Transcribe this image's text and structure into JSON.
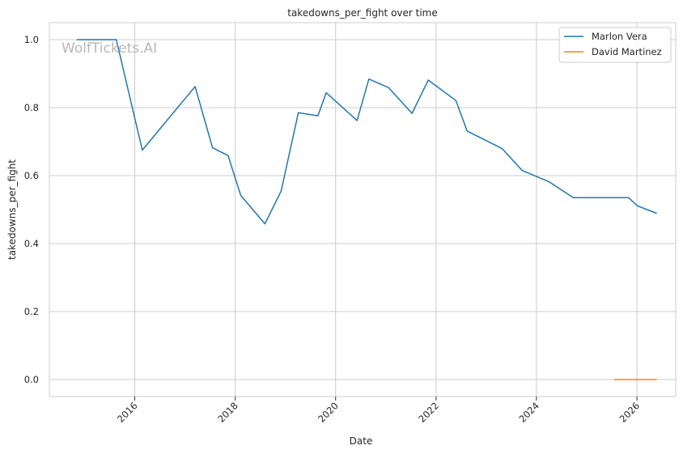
{
  "chart_data": {
    "type": "line",
    "title": "takedowns_per_fight over time",
    "xlabel": "Date",
    "ylabel": "takedowns_per_fight",
    "watermark": "WolfTickets.AI",
    "x_is_date": true,
    "xlim": [
      "2014-04-20",
      "2026-10-10"
    ],
    "ylim": [
      -0.05,
      1.05
    ],
    "x_ticks": [
      "2016-01-01",
      "2018-01-01",
      "2020-01-01",
      "2022-01-01",
      "2024-01-01",
      "2026-01-01"
    ],
    "x_tick_labels": [
      "2016",
      "2018",
      "2020",
      "2022",
      "2024",
      "2026"
    ],
    "y_ticks": [
      0.0,
      0.2,
      0.4,
      0.6,
      0.8,
      1.0
    ],
    "y_tick_labels": [
      "0.0",
      "0.2",
      "0.4",
      "0.6",
      "0.8",
      "1.0"
    ],
    "grid": true,
    "legend_position": "top-right",
    "series": [
      {
        "name": "Marlon Vera",
        "color": "#1f77b4",
        "points": [
          {
            "x": "2014-11-05",
            "y": 1.0
          },
          {
            "x": "2015-08-20",
            "y": 1.0
          },
          {
            "x": "2016-02-25",
            "y": 0.675
          },
          {
            "x": "2017-03-15",
            "y": 0.862
          },
          {
            "x": "2017-07-20",
            "y": 0.682
          },
          {
            "x": "2017-11-10",
            "y": 0.659
          },
          {
            "x": "2018-02-10",
            "y": 0.542
          },
          {
            "x": "2018-08-05",
            "y": 0.458
          },
          {
            "x": "2018-12-01",
            "y": 0.555
          },
          {
            "x": "2019-04-05",
            "y": 0.785
          },
          {
            "x": "2019-08-25",
            "y": 0.776
          },
          {
            "x": "2019-10-25",
            "y": 0.844
          },
          {
            "x": "2020-06-05",
            "y": 0.762
          },
          {
            "x": "2020-08-30",
            "y": 0.884
          },
          {
            "x": "2021-01-20",
            "y": 0.859
          },
          {
            "x": "2021-07-10",
            "y": 0.783
          },
          {
            "x": "2021-11-05",
            "y": 0.881
          },
          {
            "x": "2022-05-25",
            "y": 0.821
          },
          {
            "x": "2022-08-15",
            "y": 0.731
          },
          {
            "x": "2023-04-25",
            "y": 0.68
          },
          {
            "x": "2023-09-20",
            "y": 0.615
          },
          {
            "x": "2024-04-01",
            "y": 0.582
          },
          {
            "x": "2024-09-25",
            "y": 0.535
          },
          {
            "x": "2025-11-01",
            "y": 0.535
          },
          {
            "x": "2026-01-05",
            "y": 0.511
          },
          {
            "x": "2026-05-25",
            "y": 0.489
          }
        ]
      },
      {
        "name": "David Martinez",
        "color": "#ff7f0e",
        "points": [
          {
            "x": "2025-07-20",
            "y": 0.0
          },
          {
            "x": "2026-05-25",
            "y": 0.0
          }
        ]
      }
    ]
  }
}
